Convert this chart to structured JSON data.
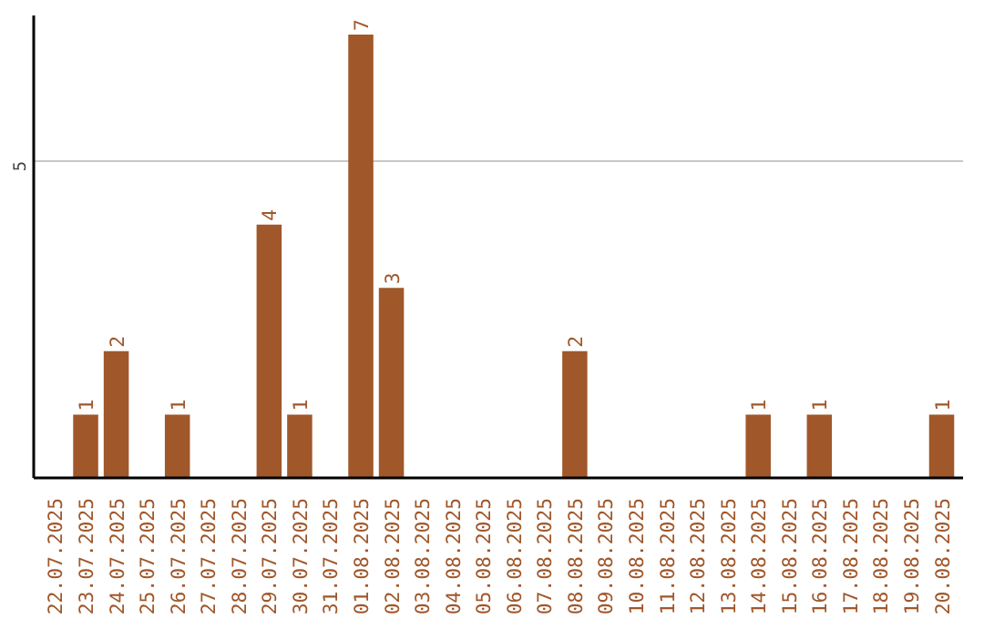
{
  "chart_data": {
    "type": "bar",
    "categories": [
      "22.07.2025",
      "23.07.2025",
      "24.07.2025",
      "25.07.2025",
      "26.07.2025",
      "27.07.2025",
      "28.07.2025",
      "29.07.2025",
      "30.07.2025",
      "31.07.2025",
      "01.08.2025",
      "02.08.2025",
      "03.08.2025",
      "04.08.2025",
      "05.08.2025",
      "06.08.2025",
      "07.08.2025",
      "08.08.2025",
      "09.08.2025",
      "10.08.2025",
      "11.08.2025",
      "12.08.2025",
      "13.08.2025",
      "14.08.2025",
      "15.08.2025",
      "16.08.2025",
      "17.08.2025",
      "18.08.2025",
      "19.08.2025",
      "20.08.2025"
    ],
    "values": [
      0,
      1,
      2,
      0,
      1,
      0,
      0,
      4,
      1,
      0,
      7,
      3,
      0,
      0,
      0,
      0,
      0,
      2,
      0,
      0,
      0,
      0,
      0,
      1,
      0,
      1,
      0,
      0,
      0,
      1
    ],
    "value_labels": [
      null,
      "1",
      "2",
      null,
      "1",
      null,
      null,
      "4",
      "1",
      null,
      "7",
      "3",
      null,
      null,
      null,
      null,
      null,
      "2",
      null,
      null,
      null,
      null,
      null,
      "1",
      null,
      "1",
      null,
      null,
      null,
      "1"
    ],
    "color": "#a0572a",
    "ylim": [
      0,
      7.3
    ],
    "yticks": [
      5
    ],
    "grid": "y"
  }
}
